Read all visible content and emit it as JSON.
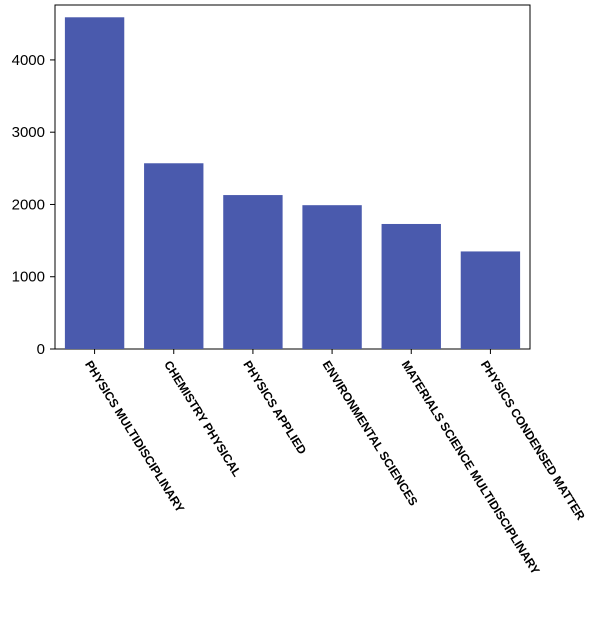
{
  "chart_data": {
    "type": "bar",
    "categories": [
      "PHYSICS MULTIDISCIPLINARY",
      "CHEMISTRY PHYSICAL",
      "PHYSICS APPLIED",
      "ENVIRONMENTAL SCIENCES",
      "MATERIALS SCIENCE MULTIDISCIPLINARY",
      "PHYSICS CONDENSED MATTER"
    ],
    "values": [
      4590,
      2570,
      2130,
      1990,
      1730,
      1350
    ],
    "color": "#4a5aad",
    "ylim": [
      0,
      4760
    ],
    "yticks": [
      0,
      1000,
      2000,
      3000,
      4000
    ]
  }
}
